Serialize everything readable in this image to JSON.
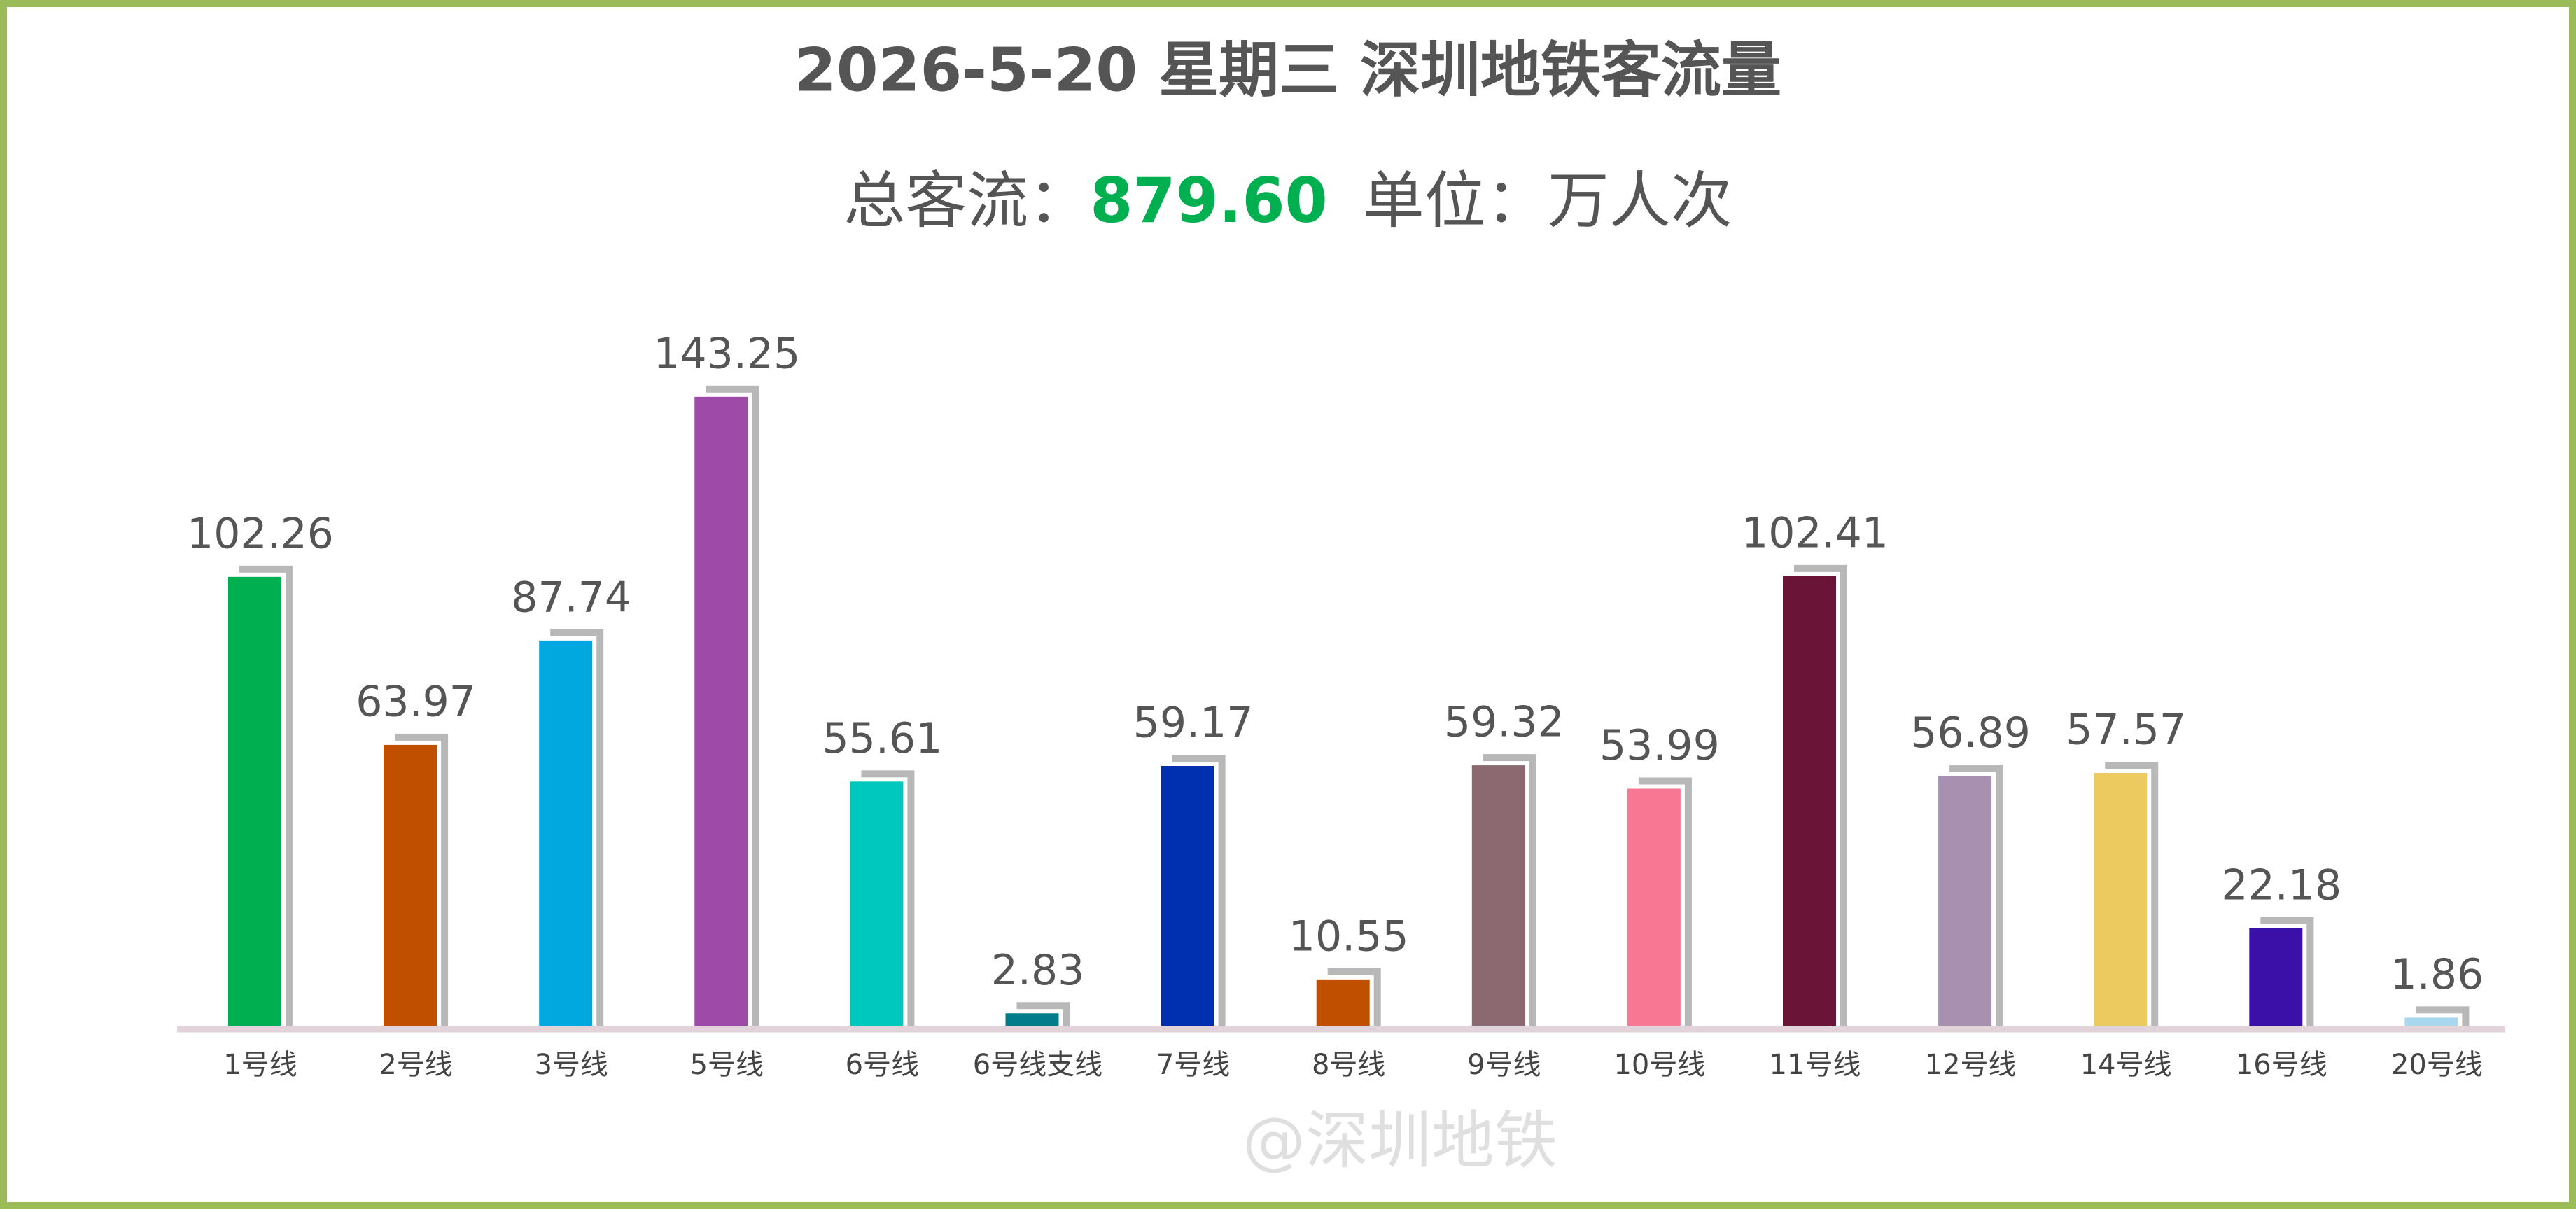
{
  "chart_data": {
    "type": "bar",
    "title": "2026-5-20 星期三  深圳地铁客流量",
    "subtitle_prefix": "总客流：",
    "total": {
      "value": 879.6,
      "label": "879.60"
    },
    "unit_text": "单位：万人次",
    "watermark": "@深圳地铁",
    "categories": [
      "1号线",
      "2号线",
      "3号线",
      "5号线",
      "6号线",
      "6号线支线",
      "7号线",
      "8号线",
      "9号线",
      "10号线",
      "11号线",
      "12号线",
      "14号线",
      "16号线",
      "20号线"
    ],
    "values": [
      102.26,
      63.97,
      87.74,
      143.25,
      55.61,
      2.83,
      59.17,
      10.55,
      59.32,
      53.99,
      102.41,
      56.89,
      57.57,
      22.18,
      1.86
    ],
    "colors": [
      "#00b050",
      "#c05000",
      "#00a8e0",
      "#9e4aa8",
      "#00c8be",
      "#007c8a",
      "#0030b0",
      "#c05000",
      "#8c6870",
      "#f87894",
      "#6a1438",
      "#a890b0",
      "#ecca60",
      "#3a10a8",
      "#a8d8f0"
    ]
  }
}
